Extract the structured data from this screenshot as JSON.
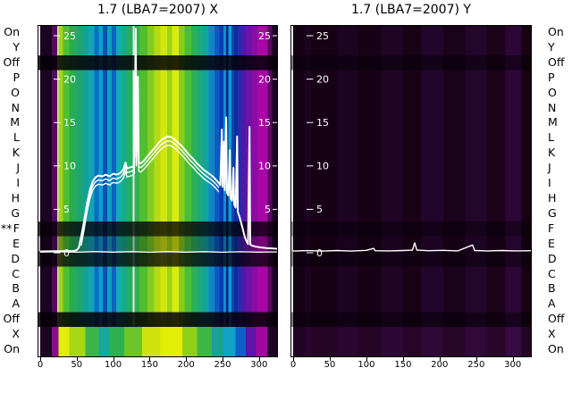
{
  "titles": {
    "x_panel": "1.7 (LBA7=2007) X",
    "y_panel": "1.7 (LBA7=2007) Y"
  },
  "row_labels": [
    "On",
    "Y",
    "Off",
    "P",
    "O",
    "N",
    "M",
    "L",
    "K",
    "J",
    "I",
    "H",
    "G",
    "F",
    "E",
    "D",
    "C",
    "B",
    "A",
    "Off",
    "X",
    "On"
  ],
  "row_flag": {
    "text": "**",
    "row_index": 13
  },
  "x_axis": {
    "tick_labels": [
      "0",
      "50",
      "100",
      "150",
      "200",
      "250",
      "300"
    ],
    "tick_values": [
      0,
      50,
      100,
      150,
      200,
      250,
      300
    ]
  },
  "value_axis": {
    "tick_labels": [
      "25",
      "20",
      "15",
      "10",
      "5",
      "0"
    ],
    "tick_values": [
      25,
      20,
      15,
      10,
      5,
      0
    ]
  },
  "chart_data": {
    "type": "heatmap",
    "x_range": [
      0,
      326
    ],
    "rows": 22,
    "row_labels": [
      "On",
      "Y",
      "Off",
      "P",
      "O",
      "N",
      "M",
      "L",
      "K",
      "J",
      "I",
      "H",
      "G",
      "F",
      "E",
      "D",
      "C",
      "B",
      "A",
      "Off",
      "X",
      "On"
    ],
    "x_ticks": [
      0,
      50,
      100,
      150,
      200,
      250,
      300
    ],
    "value_ticks": [
      25,
      20,
      15,
      10,
      5,
      0
    ],
    "panels": [
      {
        "name": "X",
        "title": "1.7 (LBA7=2007) X",
        "has_right_scale": true,
        "stripes": [
          [
            0,
            16,
            "#1b0322"
          ],
          [
            16,
            23,
            "#55085e"
          ],
          [
            23,
            25,
            "#d8d3de"
          ],
          [
            25,
            31,
            "#a6d31a"
          ],
          [
            31,
            40,
            "#4fc02e"
          ],
          [
            40,
            50,
            "#28ab52"
          ],
          [
            50,
            58,
            "#1da673"
          ],
          [
            58,
            66,
            "#15a295"
          ],
          [
            66,
            74,
            "#10a4b8"
          ],
          [
            74,
            80,
            "#0c6cc4"
          ],
          [
            80,
            86,
            "#0ba0cc"
          ],
          [
            86,
            92,
            "#0d4fb8"
          ],
          [
            92,
            98,
            "#0f9fc0"
          ],
          [
            98,
            104,
            "#0d62c0"
          ],
          [
            104,
            111,
            "#12acb0"
          ],
          [
            111,
            119,
            "#17ab8a"
          ],
          [
            119,
            127,
            "#22b060"
          ],
          [
            127,
            129,
            "#e8f0ea"
          ],
          [
            129,
            136,
            "#2eb24c"
          ],
          [
            136,
            147,
            "#4fbe32"
          ],
          [
            147,
            156,
            "#85cc1f"
          ],
          [
            156,
            165,
            "#b4da14"
          ],
          [
            165,
            174,
            "#d3e60d"
          ],
          [
            174,
            181,
            "#9ed318"
          ],
          [
            181,
            190,
            "#dcea0a"
          ],
          [
            190,
            198,
            "#86cd1e"
          ],
          [
            198,
            207,
            "#4dbe33"
          ],
          [
            207,
            215,
            "#2bb155"
          ],
          [
            215,
            223,
            "#1ca97c"
          ],
          [
            223,
            231,
            "#14a49e"
          ],
          [
            231,
            239,
            "#0e86c6"
          ],
          [
            239,
            246,
            "#0c5cc2"
          ],
          [
            246,
            251,
            "#0a3cb4"
          ],
          [
            251,
            255,
            "#0f8ed2"
          ],
          [
            255,
            258,
            "#07277e"
          ],
          [
            258,
            262,
            "#0c9ed6"
          ],
          [
            262,
            266,
            "#0846ae"
          ],
          [
            266,
            271,
            "#0a2f9e"
          ],
          [
            271,
            276,
            "#2b28ae"
          ],
          [
            276,
            282,
            "#4c1aaa"
          ],
          [
            282,
            290,
            "#6d12a4"
          ],
          [
            290,
            298,
            "#8b0ca2"
          ],
          [
            298,
            312,
            "#a807a6"
          ],
          [
            312,
            318,
            "#57085e"
          ],
          [
            318,
            326,
            "#1b0322"
          ]
        ],
        "bottom_band": {
          "row_start": 20,
          "row_span": 2,
          "stripes": [
            [
              0,
              16,
              "#1d0424"
            ],
            [
              16,
              25,
              "#8a0d8e"
            ],
            [
              25,
              40,
              "#e2ec07"
            ],
            [
              40,
              62,
              "#a8d813"
            ],
            [
              62,
              80,
              "#3cb447"
            ],
            [
              80,
              95,
              "#18a79c"
            ],
            [
              95,
              115,
              "#2eb04e"
            ],
            [
              115,
              140,
              "#6ec526"
            ],
            [
              140,
              165,
              "#cfe40c"
            ],
            [
              165,
              195,
              "#e4ee05"
            ],
            [
              195,
              215,
              "#90d018"
            ],
            [
              215,
              235,
              "#3eb843"
            ],
            [
              235,
              252,
              "#1aa193"
            ],
            [
              252,
              268,
              "#11a2c8"
            ],
            [
              268,
              282,
              "#0f5ec4"
            ],
            [
              282,
              296,
              "#5d14a8"
            ],
            [
              296,
              312,
              "#a108a0"
            ],
            [
              312,
              326,
              "#1d0424"
            ]
          ]
        },
        "dark_rows": [
          [
            2,
            0.85
          ],
          [
            13,
            0.78
          ],
          [
            14,
            0.3
          ],
          [
            15,
            0.75
          ],
          [
            19,
            0.85
          ]
        ],
        "series": {
          "main": [
            [
              0,
              0.15
            ],
            [
              30,
              0.2
            ],
            [
              45,
              0.2
            ],
            [
              50,
              0.3
            ],
            [
              53,
              0.6
            ],
            [
              56,
              1.8
            ],
            [
              60,
              3.6
            ],
            [
              64,
              5.6
            ],
            [
              68,
              7.2
            ],
            [
              72,
              8.2
            ],
            [
              76,
              8.7
            ],
            [
              80,
              8.9
            ],
            [
              85,
              8.8
            ],
            [
              90,
              9.0
            ],
            [
              95,
              8.8
            ],
            [
              100,
              9.1
            ],
            [
              105,
              9.0
            ],
            [
              110,
              9.2
            ],
            [
              114,
              9.6
            ],
            [
              117,
              10.4
            ],
            [
              119,
              9.7
            ],
            [
              122,
              9.8
            ],
            [
              126,
              9.9
            ],
            [
              129,
              10.1
            ],
            [
              131,
              25.8
            ],
            [
              132,
              11.0
            ],
            [
              134,
              20.3
            ],
            [
              135,
              10.4
            ],
            [
              138,
              10.3
            ],
            [
              142,
              10.6
            ],
            [
              146,
              11.0
            ],
            [
              150,
              11.4
            ],
            [
              155,
              11.9
            ],
            [
              160,
              12.4
            ],
            [
              165,
              12.9
            ],
            [
              170,
              13.2
            ],
            [
              175,
              13.4
            ],
            [
              180,
              13.3
            ],
            [
              185,
              13.0
            ],
            [
              190,
              12.6
            ],
            [
              195,
              12.2
            ],
            [
              200,
              11.7
            ],
            [
              205,
              11.2
            ],
            [
              210,
              10.8
            ],
            [
              215,
              10.3
            ],
            [
              220,
              9.9
            ],
            [
              225,
              9.5
            ],
            [
              230,
              9.2
            ],
            [
              235,
              8.9
            ],
            [
              239,
              8.6
            ],
            [
              242,
              8.3
            ],
            [
              245,
              8.0
            ],
            [
              247,
              7.8
            ],
            [
              249,
              14.2
            ],
            [
              250,
              7.6
            ],
            [
              252,
              12.8
            ],
            [
              253,
              7.2
            ],
            [
              255,
              15.6
            ],
            [
              256,
              6.9
            ],
            [
              258,
              6.6
            ],
            [
              260,
              11.8
            ],
            [
              261,
              6.3
            ],
            [
              263,
              6.0
            ],
            [
              265,
              9.8
            ],
            [
              266,
              5.6
            ],
            [
              268,
              5.2
            ],
            [
              270,
              13.4
            ],
            [
              271,
              4.7
            ],
            [
              273,
              4.2
            ],
            [
              275,
              3.6
            ],
            [
              277,
              3.0
            ],
            [
              279,
              2.3
            ],
            [
              281,
              1.7
            ],
            [
              283,
              1.3
            ],
            [
              285,
              1.0
            ],
            [
              287,
              14.5
            ],
            [
              288,
              0.95
            ],
            [
              291,
              0.8
            ],
            [
              296,
              0.7
            ],
            [
              302,
              0.62
            ],
            [
              310,
              0.55
            ],
            [
              318,
              0.5
            ],
            [
              326,
              0.45
            ]
          ],
          "bundle_offsets": [
            0.5,
            1.0
          ],
          "bundle_span": [
            56,
            246
          ],
          "zero": [
            [
              0,
              0.08
            ],
            [
              25,
              0.12
            ],
            [
              50,
              0.06
            ],
            [
              75,
              0.13
            ],
            [
              100,
              0.07
            ],
            [
              125,
              0.12
            ],
            [
              150,
              0.06
            ],
            [
              175,
              0.12
            ],
            [
              200,
              0.07
            ],
            [
              225,
              0.12
            ],
            [
              250,
              0.06
            ],
            [
              275,
              0.11
            ],
            [
              300,
              0.07
            ],
            [
              326,
              0.1
            ]
          ]
        }
      },
      {
        "name": "Y",
        "title": "1.7 (LBA7=2007) Y",
        "has_right_scale": false,
        "stripes": [
          [
            0,
            16,
            "#140113"
          ],
          [
            16,
            25,
            "#1c0320"
          ],
          [
            25,
            60,
            "#170215"
          ],
          [
            60,
            90,
            "#1d0322"
          ],
          [
            90,
            120,
            "#160214"
          ],
          [
            120,
            150,
            "#200426"
          ],
          [
            150,
            175,
            "#180216"
          ],
          [
            175,
            205,
            "#22052a"
          ],
          [
            205,
            235,
            "#190318"
          ],
          [
            235,
            265,
            "#24052c"
          ],
          [
            265,
            290,
            "#1b0319"
          ],
          [
            290,
            312,
            "#2c0736"
          ],
          [
            312,
            326,
            "#160213"
          ]
        ],
        "dark_rows": [
          [
            2,
            0.5
          ],
          [
            13,
            0.45
          ],
          [
            14,
            0.2
          ],
          [
            15,
            0.45
          ],
          [
            19,
            0.5
          ]
        ],
        "bright_rows": [
          [
            20,
            0.1
          ],
          [
            21,
            0.1
          ]
        ],
        "series": {
          "main": [
            [
              0,
              0.2
            ],
            [
              20,
              0.25
            ],
            [
              40,
              0.2
            ],
            [
              60,
              0.26
            ],
            [
              80,
              0.2
            ],
            [
              100,
              0.28
            ],
            [
              110,
              0.5
            ],
            [
              112,
              0.24
            ],
            [
              130,
              0.22
            ],
            [
              150,
              0.26
            ],
            [
              163,
              0.3
            ],
            [
              166,
              1.15
            ],
            [
              169,
              0.3
            ],
            [
              185,
              0.24
            ],
            [
              205,
              0.28
            ],
            [
              225,
              0.22
            ],
            [
              245,
              0.9
            ],
            [
              248,
              0.26
            ],
            [
              265,
              0.22
            ],
            [
              285,
              0.26
            ],
            [
              305,
              0.22
            ],
            [
              326,
              0.24
            ]
          ],
          "zero": []
        }
      }
    ]
  }
}
